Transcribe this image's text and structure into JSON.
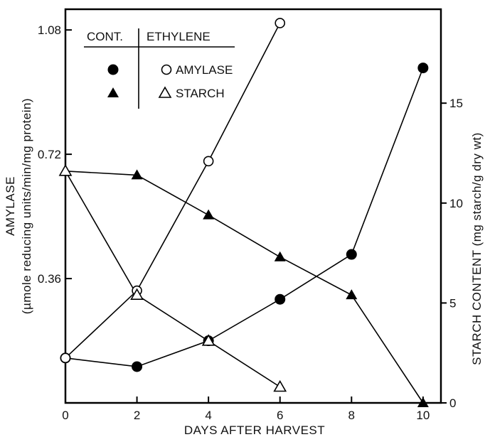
{
  "chart_data": {
    "type": "line",
    "xlabel": "DAYS AFTER HARVEST",
    "ylabel_left": [
      "AMYLASE",
      "(µmole reducing units/min/mg protein)"
    ],
    "ylabel_right": "STARCH CONTENT (mg starch/g dry wt)",
    "xlim": [
      0,
      10.5
    ],
    "ylim_left": [
      0,
      1.14
    ],
    "ylim_right": [
      0,
      19.7
    ],
    "x_ticks": [
      0,
      2,
      4,
      6,
      8,
      10
    ],
    "x_tick_labels": [
      "0",
      "2",
      "4",
      "6",
      "8",
      "10"
    ],
    "y_left_ticks": [
      0.36,
      0.72,
      1.08
    ],
    "y_left_tick_labels": [
      "0.36",
      "0.72",
      "1.08"
    ],
    "y_right_ticks": [
      0,
      5,
      10,
      15
    ],
    "y_right_tick_labels": [
      "0",
      "5",
      "10",
      "15"
    ],
    "grid": false,
    "legend": {
      "header_control": "CONT.",
      "header_ethylene": "ETHYLENE",
      "amylase_label": "AMYLASE",
      "starch_label": "STARCH",
      "placement": "top-left"
    },
    "series": [
      {
        "name": "AMYLASE",
        "group": "CONT.",
        "axis": "left",
        "marker": "filled-circle",
        "x": [
          0,
          2,
          4,
          6,
          8,
          10
        ],
        "y": [
          0.13,
          0.105,
          0.18,
          0.3,
          0.43,
          0.97
        ]
      },
      {
        "name": "STARCH",
        "group": "CONT.",
        "axis": "right",
        "marker": "filled-triangle",
        "x": [
          0,
          2,
          4,
          6,
          8,
          10
        ],
        "y": [
          11.6,
          11.4,
          9.4,
          7.3,
          5.4,
          0
        ]
      },
      {
        "name": "AMYLASE",
        "group": "ETHYLENE",
        "axis": "left",
        "marker": "open-circle",
        "x": [
          0,
          2,
          4,
          6
        ],
        "y": [
          0.13,
          0.325,
          0.7,
          1.1
        ]
      },
      {
        "name": "STARCH",
        "group": "ETHYLENE",
        "axis": "right",
        "marker": "open-triangle",
        "x": [
          0,
          2,
          4,
          6
        ],
        "y": [
          11.6,
          5.4,
          3.1,
          0.8
        ]
      }
    ]
  }
}
